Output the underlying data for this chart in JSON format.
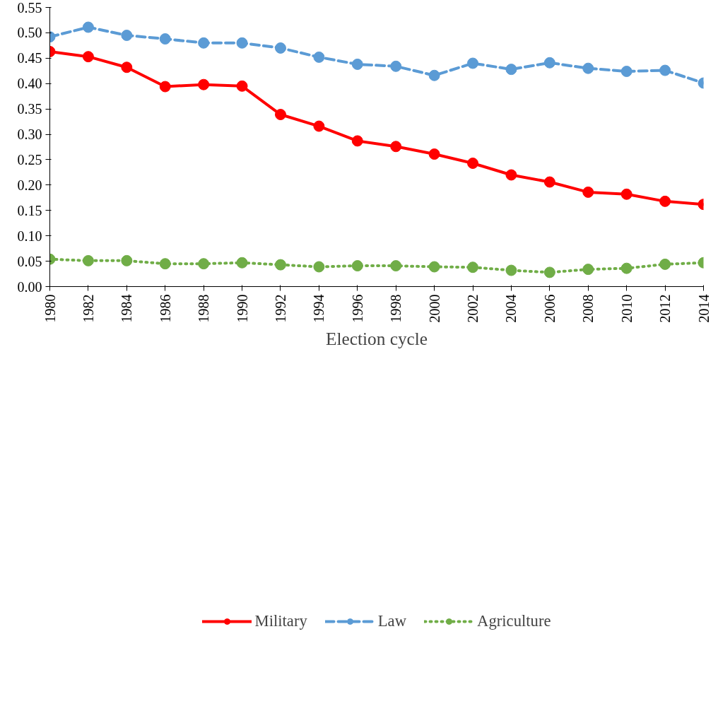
{
  "chart_data": {
    "type": "line",
    "xlabel": "Election cycle",
    "x": [
      1980,
      1982,
      1984,
      1986,
      1988,
      1990,
      1992,
      1994,
      1996,
      1998,
      2000,
      2002,
      2004,
      2006,
      2008,
      2010,
      2012,
      2014
    ],
    "xlim": [
      1980,
      2014
    ],
    "xticks": [
      1980,
      1982,
      1984,
      1986,
      1988,
      1990,
      1992,
      1994,
      1996,
      1998,
      2000,
      2002,
      2004,
      2006,
      2008,
      2010,
      2012,
      2014
    ],
    "ylim": [
      0,
      0.55
    ],
    "yticks": [
      {
        "value": 0,
        "label": "0.00"
      },
      {
        "value": 0.05,
        "label": "0.05"
      },
      {
        "value": 0.1,
        "label": "0.10"
      },
      {
        "value": 0.15,
        "label": "0.15"
      },
      {
        "value": 0.2,
        "label": "0.20"
      },
      {
        "value": 0.25,
        "label": "0.25"
      },
      {
        "value": 0.3,
        "label": "0.30"
      },
      {
        "value": 0.35,
        "label": "0.35"
      },
      {
        "value": 0.4,
        "label": "0.40"
      },
      {
        "value": 0.45,
        "label": "0.45"
      },
      {
        "value": 0.5,
        "label": "0.50"
      },
      {
        "value": 0.55,
        "label": "0.55"
      }
    ],
    "grid": false,
    "legend": "bottom",
    "marker": "circle",
    "series": [
      {
        "name": "Military",
        "color": "#ff0000",
        "line_style": "solid",
        "values": [
          0.463,
          0.453,
          0.432,
          0.394,
          0.398,
          0.395,
          0.339,
          0.316,
          0.287,
          0.276,
          0.261,
          0.243,
          0.22,
          0.206,
          0.186,
          0.182,
          0.168,
          0.162
        ]
      },
      {
        "name": "Law",
        "color": "#5b9bd5",
        "line_style": "dashed",
        "values": [
          0.492,
          0.511,
          0.495,
          0.488,
          0.48,
          0.48,
          0.47,
          0.452,
          0.438,
          0.434,
          0.416,
          0.44,
          0.428,
          0.441,
          0.43,
          0.424,
          0.426,
          0.401
        ]
      },
      {
        "name": "Agriculture",
        "color": "#70ad47",
        "line_style": "dotted",
        "values": [
          0.054,
          0.051,
          0.051,
          0.045,
          0.045,
          0.047,
          0.043,
          0.039,
          0.041,
          0.041,
          0.039,
          0.038,
          0.032,
          0.028,
          0.034,
          0.036,
          0.044,
          0.047
        ]
      }
    ]
  }
}
